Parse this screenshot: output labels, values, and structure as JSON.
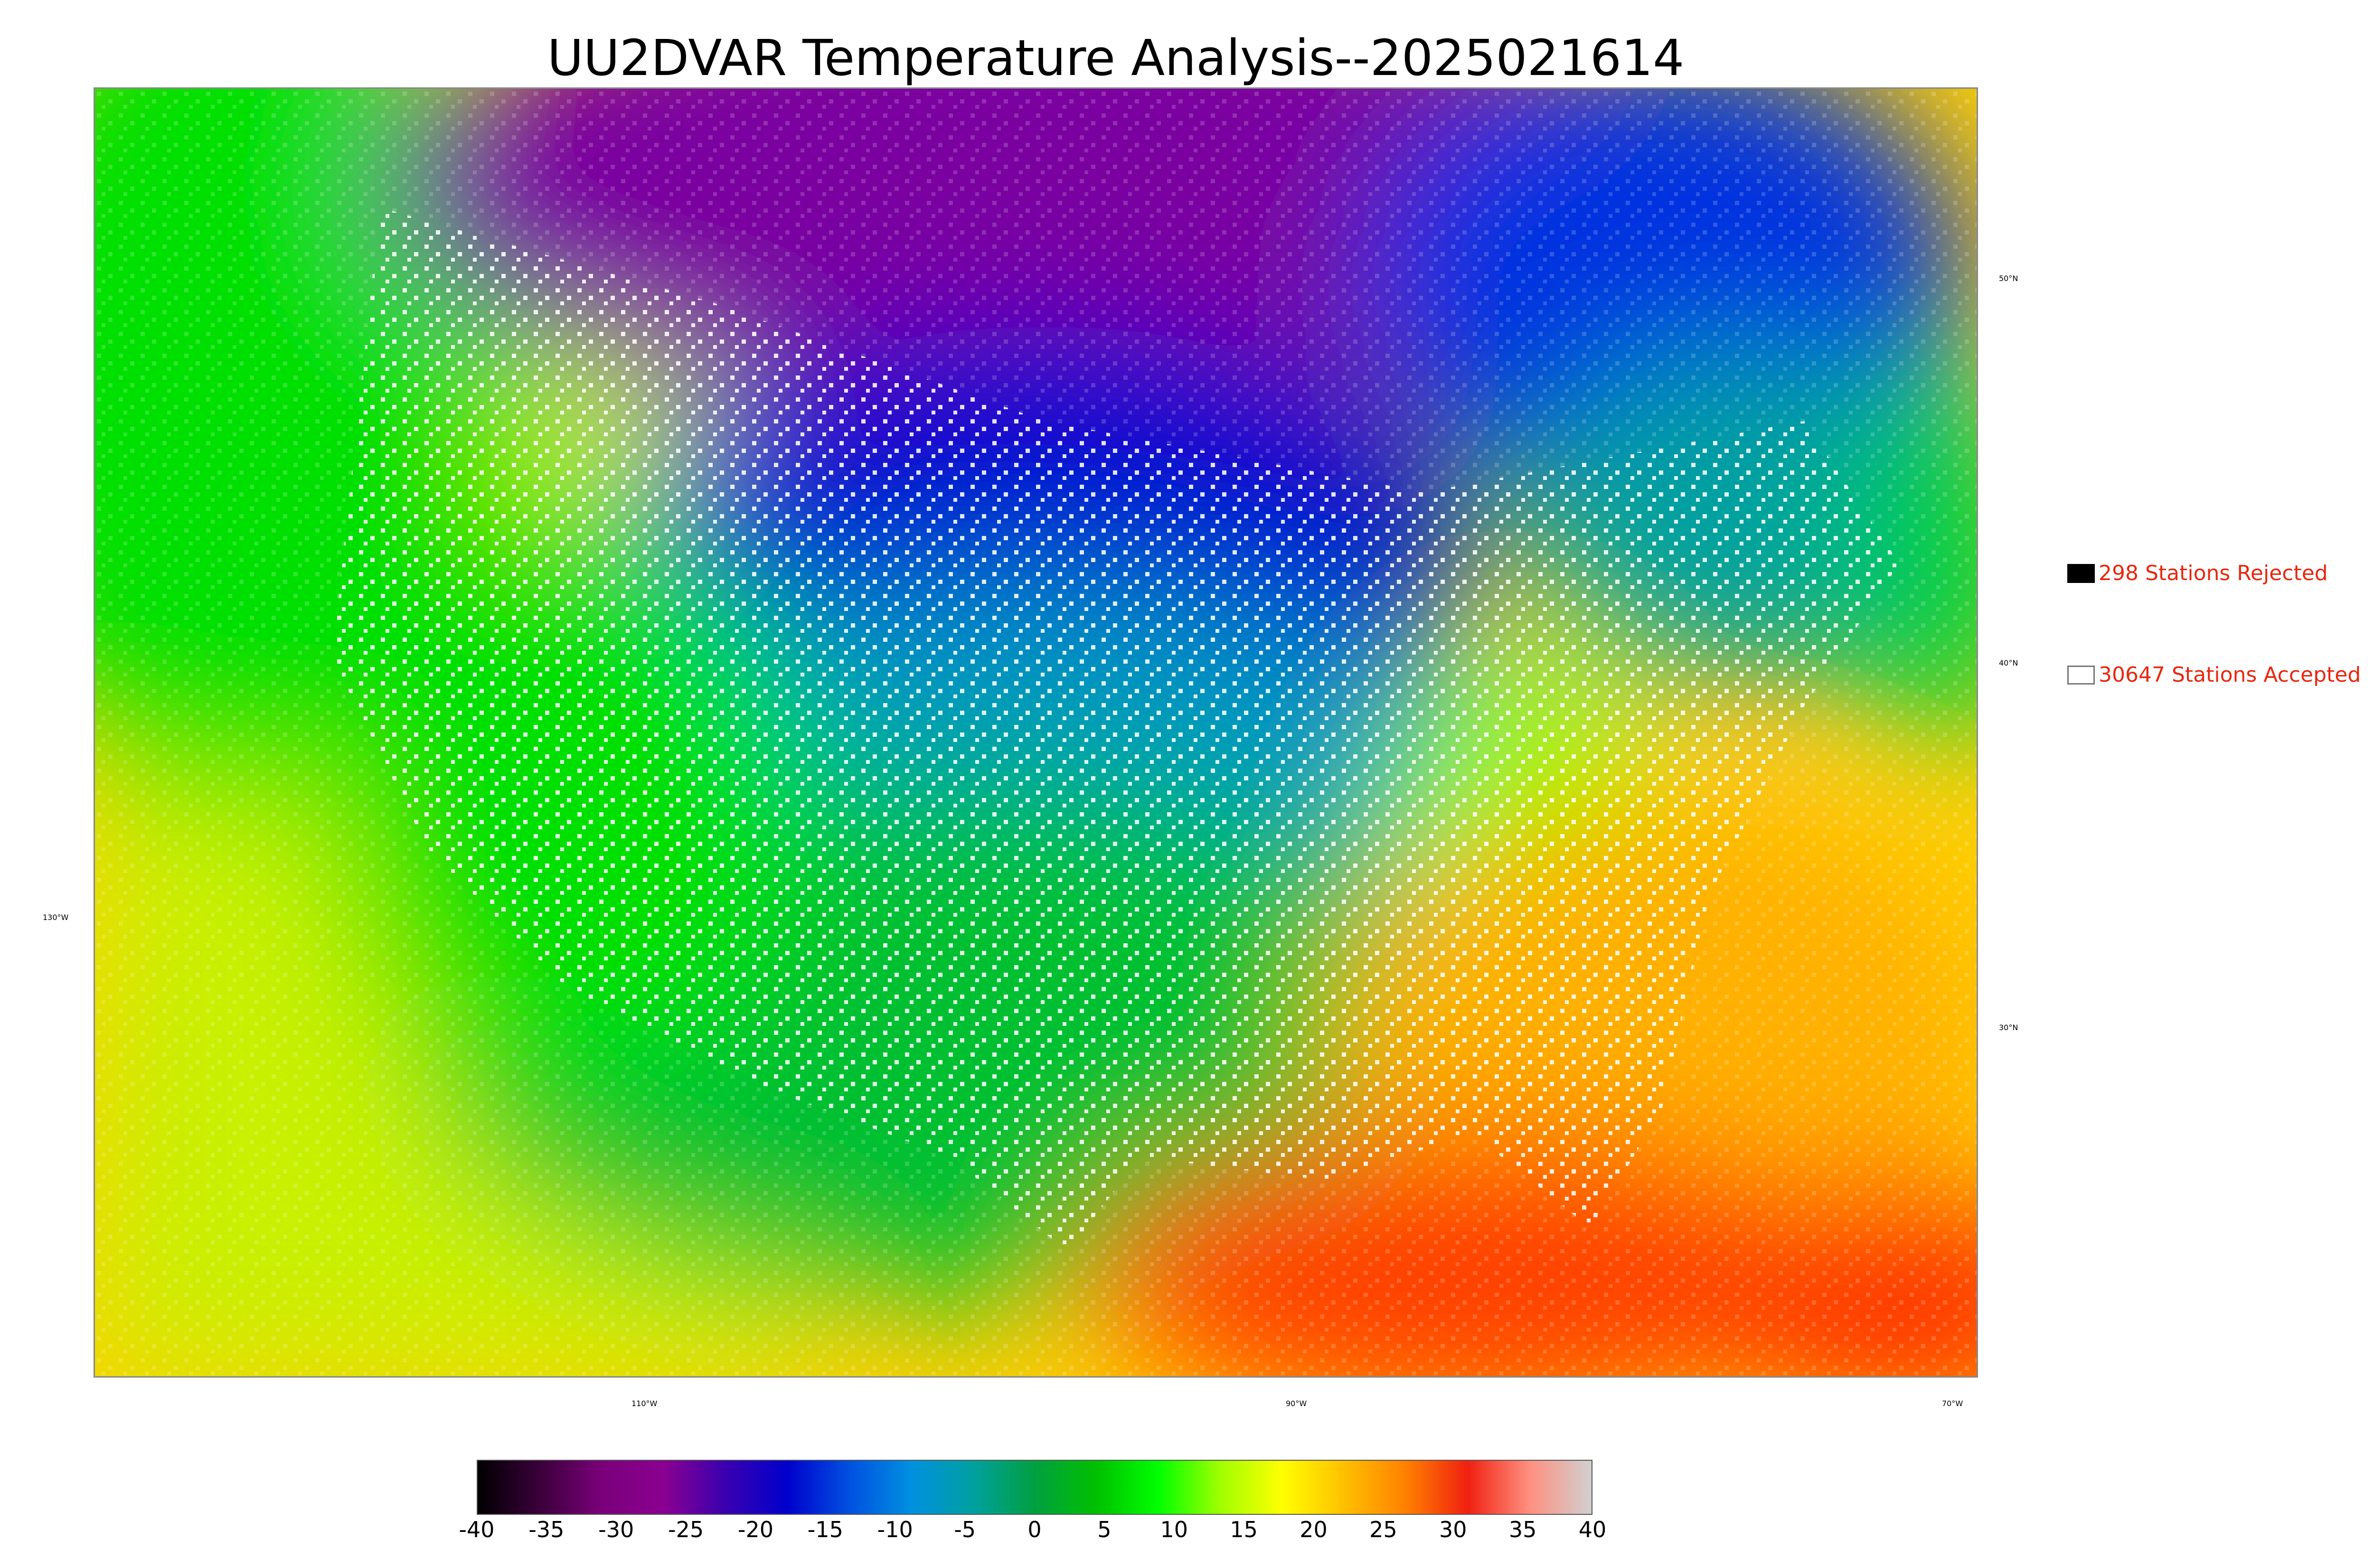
{
  "title": "UU2DVAR Temperature Analysis--2025021614",
  "map": {
    "lon_labels": [
      "130°W",
      "110°W",
      "90°W",
      "70°W"
    ],
    "lat_labels": [
      "50°N",
      "40°N",
      "30°N"
    ]
  },
  "legend": {
    "rejected": "298 Stations Rejected",
    "accepted": "30647 Stations Accepted"
  },
  "colorbar": {
    "ticks": [
      "-40",
      "-35",
      "-30",
      "-25",
      "-20",
      "-15",
      "-10",
      "-5",
      "0",
      "5",
      "10",
      "15",
      "20",
      "25",
      "30",
      "35",
      "40"
    ],
    "colors": [
      "#000000",
      "#3a003a",
      "#7a007a",
      "#8a0090",
      "#3a00b0",
      "#0000cc",
      "#0050e0",
      "#0090e0",
      "#00a0a0",
      "#00a040",
      "#00c000",
      "#00ff00",
      "#a0ff00",
      "#ffff00",
      "#ffc000",
      "#ff8000",
      "#f02010",
      "#ff9080",
      "#d0d0d0"
    ]
  }
}
